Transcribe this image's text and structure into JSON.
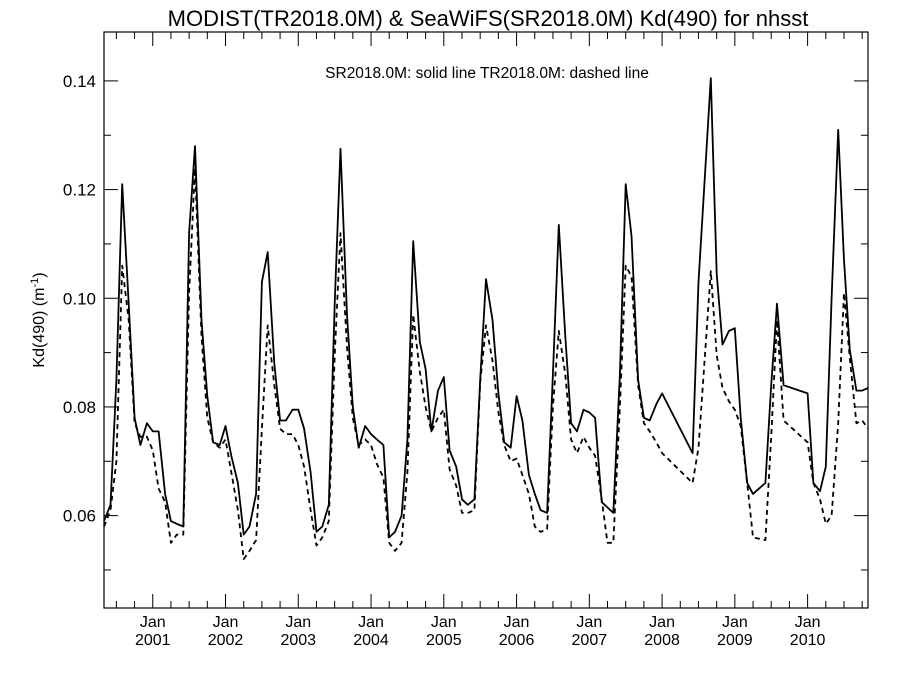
{
  "chart_data": {
    "type": "line",
    "title": "MODIST(TR2018.0M) & SeaWiFS(SR2018.0M)  Kd(490) for nhsst",
    "annotation": "SR2018.0M: solid line   TR2018.0M: dashed line",
    "ylabel_text": "Kd(490) (m",
    "ylabel_sup": "-1",
    "ylabel_close": ")",
    "xlabel": "",
    "ylim": [
      0.043,
      0.149
    ],
    "xlim": [
      2000.33,
      2010.83
    ],
    "grid": false,
    "yticks": [
      0.06,
      0.08,
      0.1,
      0.12,
      0.14
    ],
    "ytick_labels": [
      "0.06",
      "0.08",
      "0.10",
      "0.12",
      "0.14"
    ],
    "xticks": [
      2001,
      2002,
      2003,
      2004,
      2005,
      2006,
      2007,
      2008,
      2009,
      2010
    ],
    "xtick_month": "Jan",
    "xtick_years": [
      "2001",
      "2002",
      "2003",
      "2004",
      "2005",
      "2006",
      "2007",
      "2008",
      "2009",
      "2010"
    ],
    "series": [
      {
        "name": "SR2018.0M",
        "style": "solid",
        "color": "#000000",
        "x": [
          2000.33,
          2000.42,
          2000.5,
          2000.58,
          2000.67,
          2000.75,
          2000.83,
          2000.92,
          2001.0,
          2001.08,
          2001.17,
          2001.25,
          2001.33,
          2001.42,
          2001.5,
          2001.58,
          2001.67,
          2001.75,
          2001.83,
          2001.92,
          2002.0,
          2002.08,
          2002.17,
          2002.25,
          2002.33,
          2002.42,
          2002.5,
          2002.58,
          2002.67,
          2002.75,
          2002.83,
          2002.92,
          2003.0,
          2003.08,
          2003.17,
          2003.25,
          2003.33,
          2003.42,
          2003.5,
          2003.58,
          2003.67,
          2003.75,
          2003.83,
          2003.92,
          2004.0,
          2004.08,
          2004.17,
          2004.25,
          2004.33,
          2004.42,
          2004.5,
          2004.58,
          2004.67,
          2004.75,
          2004.83,
          2004.92,
          2005.0,
          2005.08,
          2005.17,
          2005.25,
          2005.33,
          2005.42,
          2005.5,
          2005.58,
          2005.67,
          2005.75,
          2005.83,
          2005.92,
          2006.0,
          2006.08,
          2006.17,
          2006.25,
          2006.33,
          2006.42,
          2006.5,
          2006.58,
          2006.67,
          2006.75,
          2006.83,
          2006.92,
          2007.0,
          2007.08,
          2007.17,
          2007.25,
          2007.33,
          2007.42,
          2007.5,
          2007.58,
          2007.67,
          2007.75,
          2007.83,
          2007.92,
          2008.0,
          2008.42,
          2008.5,
          2008.67,
          2008.75,
          2008.83,
          2008.92,
          2009.0,
          2009.08,
          2009.17,
          2009.25,
          2009.42,
          2009.5,
          2009.58,
          2009.67,
          2010.0,
          2010.08,
          2010.17,
          2010.25,
          2010.33,
          2010.42,
          2010.5,
          2010.58,
          2010.67,
          2010.75,
          2010.83
        ],
        "values": [
          0.059,
          0.062,
          0.085,
          0.121,
          0.099,
          0.078,
          0.073,
          0.077,
          0.0755,
          0.0755,
          0.064,
          0.059,
          0.0585,
          0.058,
          0.112,
          0.128,
          0.096,
          0.082,
          0.0735,
          0.073,
          0.0765,
          0.071,
          0.066,
          0.0565,
          0.058,
          0.064,
          0.103,
          0.1085,
          0.088,
          0.0775,
          0.0775,
          0.0795,
          0.0795,
          0.076,
          0.068,
          0.057,
          0.058,
          0.062,
          0.099,
          0.1275,
          0.097,
          0.08,
          0.0725,
          0.0765,
          0.075,
          0.074,
          0.073,
          0.056,
          0.057,
          0.06,
          0.074,
          0.1105,
          0.092,
          0.087,
          0.0755,
          0.083,
          0.0855,
          0.072,
          0.069,
          0.063,
          0.062,
          0.063,
          0.085,
          0.1035,
          0.096,
          0.0825,
          0.0735,
          0.0725,
          0.082,
          0.0775,
          0.0675,
          0.064,
          0.061,
          0.0605,
          0.086,
          0.1135,
          0.093,
          0.077,
          0.0755,
          0.0795,
          0.079,
          0.078,
          0.0625,
          0.0615,
          0.0605,
          0.086,
          0.121,
          0.1115,
          0.085,
          0.078,
          0.0775,
          0.0805,
          0.0825,
          0.0715,
          0.103,
          0.1405,
          0.1045,
          0.0915,
          0.094,
          0.0945,
          0.078,
          0.066,
          0.064,
          0.066,
          0.084,
          0.099,
          0.084,
          0.0825,
          0.066,
          0.0645,
          0.069,
          0.1,
          0.131,
          0.107,
          0.0905,
          0.083,
          0.083,
          0.0835
        ]
      },
      {
        "name": "TR2018.0M",
        "style": "dashed",
        "color": "#000000",
        "x": [
          2000.33,
          2000.42,
          2000.5,
          2000.58,
          2000.67,
          2000.75,
          2000.83,
          2000.92,
          2001.0,
          2001.08,
          2001.17,
          2001.25,
          2001.33,
          2001.42,
          2001.5,
          2001.58,
          2001.67,
          2001.75,
          2001.83,
          2001.92,
          2002.0,
          2002.08,
          2002.17,
          2002.25,
          2002.33,
          2002.42,
          2002.5,
          2002.58,
          2002.67,
          2002.75,
          2002.83,
          2002.92,
          2003.0,
          2003.08,
          2003.17,
          2003.25,
          2003.33,
          2003.42,
          2003.5,
          2003.58,
          2003.67,
          2003.75,
          2003.83,
          2003.92,
          2004.0,
          2004.08,
          2004.17,
          2004.25,
          2004.33,
          2004.42,
          2004.5,
          2004.58,
          2004.67,
          2004.75,
          2004.83,
          2004.92,
          2005.0,
          2005.08,
          2005.17,
          2005.25,
          2005.33,
          2005.42,
          2005.5,
          2005.58,
          2005.67,
          2005.75,
          2005.83,
          2005.92,
          2006.0,
          2006.08,
          2006.17,
          2006.25,
          2006.33,
          2006.42,
          2006.5,
          2006.58,
          2006.67,
          2006.75,
          2006.83,
          2006.92,
          2007.0,
          2007.08,
          2007.17,
          2007.25,
          2007.33,
          2007.42,
          2007.5,
          2007.58,
          2007.67,
          2007.75,
          2007.83,
          2007.92,
          2008.0,
          2008.42,
          2008.5,
          2008.67,
          2008.75,
          2008.83,
          2008.92,
          2009.0,
          2009.08,
          2009.17,
          2009.25,
          2009.42,
          2009.5,
          2009.58,
          2009.67,
          2010.0,
          2010.08,
          2010.17,
          2010.25,
          2010.33,
          2010.42,
          2010.5,
          2010.58,
          2010.67,
          2010.75,
          2010.83
        ],
        "values": [
          0.058,
          0.061,
          0.07,
          0.106,
          0.096,
          0.077,
          0.0745,
          0.0745,
          0.072,
          0.065,
          0.0625,
          0.055,
          0.0565,
          0.0565,
          0.101,
          0.124,
          0.093,
          0.078,
          0.0735,
          0.0725,
          0.074,
          0.068,
          0.061,
          0.052,
          0.0535,
          0.0555,
          0.076,
          0.095,
          0.084,
          0.076,
          0.075,
          0.075,
          0.073,
          0.069,
          0.061,
          0.0545,
          0.056,
          0.059,
          0.0895,
          0.112,
          0.091,
          0.078,
          0.073,
          0.074,
          0.073,
          0.0695,
          0.067,
          0.055,
          0.0535,
          0.055,
          0.068,
          0.097,
          0.0865,
          0.08,
          0.0755,
          0.078,
          0.0795,
          0.0685,
          0.0655,
          0.0605,
          0.0605,
          0.061,
          0.0845,
          0.095,
          0.0885,
          0.079,
          0.073,
          0.07,
          0.0705,
          0.0675,
          0.064,
          0.058,
          0.057,
          0.0575,
          0.08,
          0.094,
          0.086,
          0.074,
          0.0715,
          0.0745,
          0.0725,
          0.071,
          0.063,
          0.055,
          0.055,
          0.08,
          0.106,
          0.104,
          0.084,
          0.077,
          0.0755,
          0.0735,
          0.0715,
          0.066,
          0.0725,
          0.105,
          0.0895,
          0.0835,
          0.081,
          0.0795,
          0.0765,
          0.066,
          0.056,
          0.0555,
          0.0745,
          0.096,
          0.0775,
          0.0735,
          0.066,
          0.063,
          0.0585,
          0.06,
          0.077,
          0.101,
          0.089,
          0.077,
          0.0775,
          0.076
        ]
      }
    ]
  }
}
